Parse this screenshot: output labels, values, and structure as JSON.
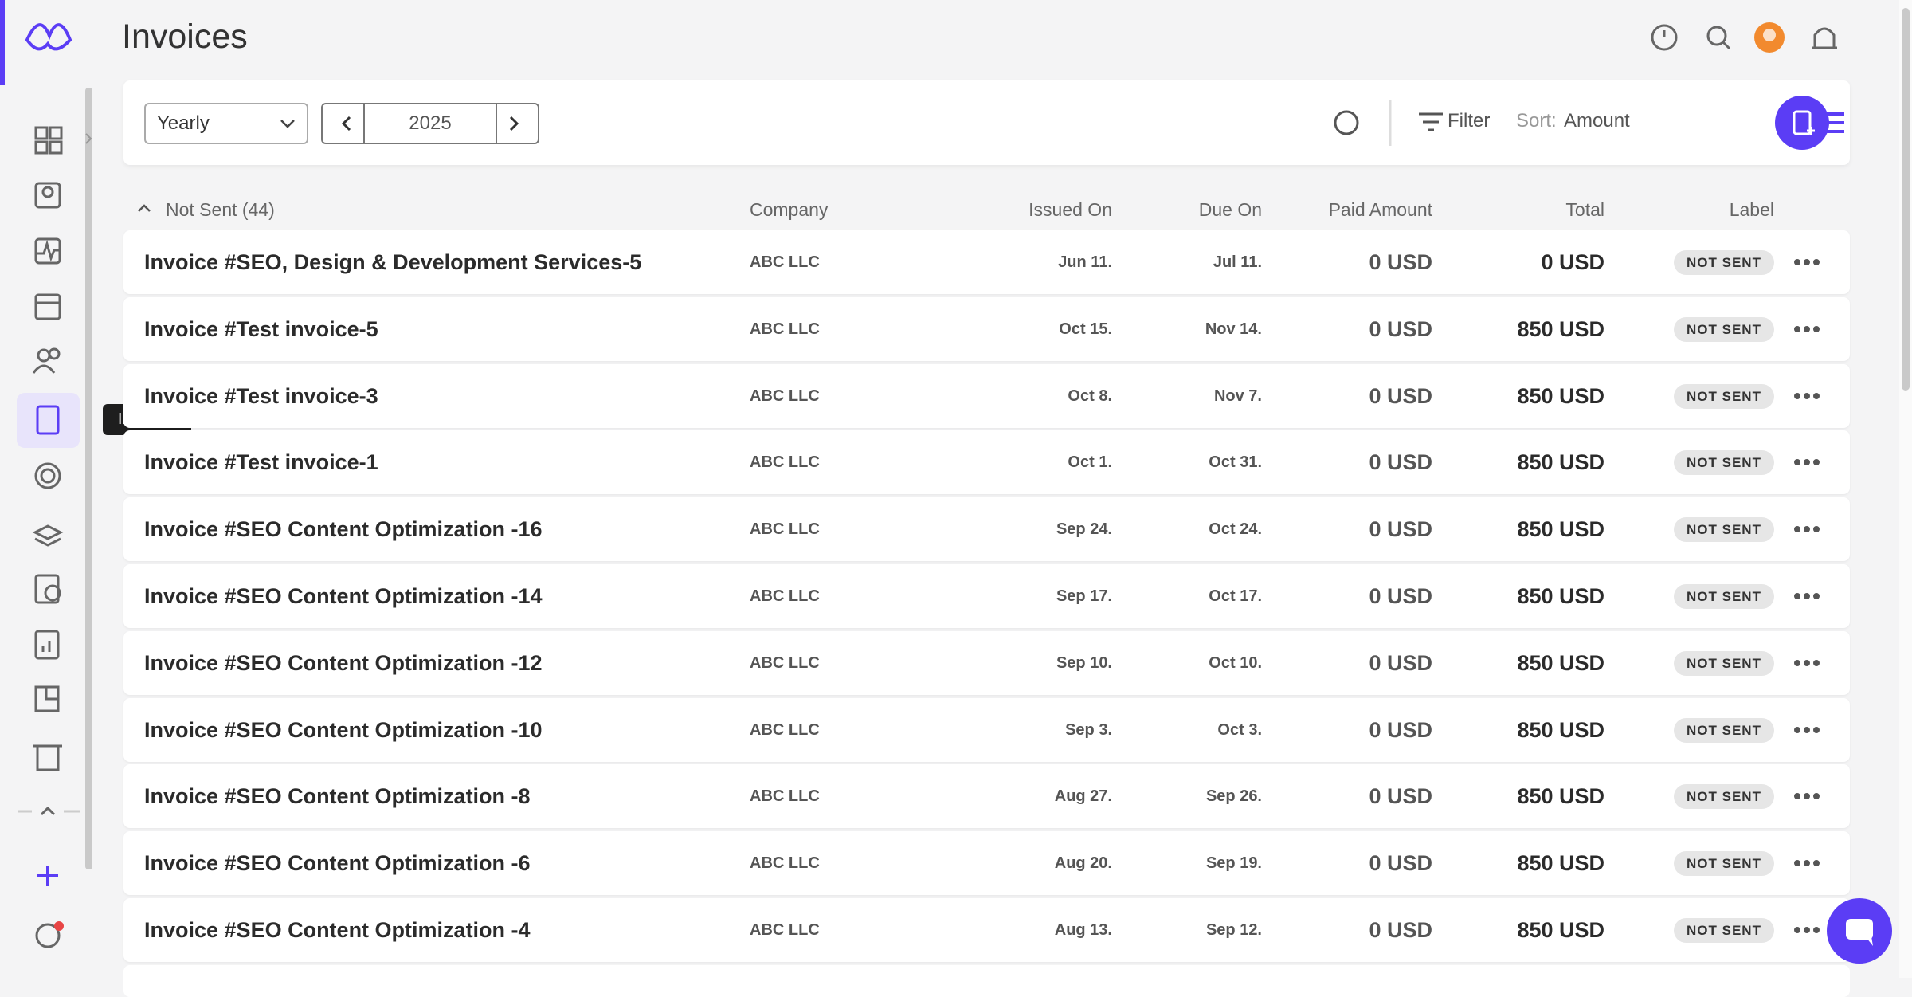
{
  "header": {
    "title": "Invoices"
  },
  "sidebar": {
    "tooltip": "Invoices"
  },
  "toolbar": {
    "period": "Yearly",
    "year": "2025",
    "filter": "Filter",
    "sort_label": "Sort:",
    "sort_value": "Amount"
  },
  "table": {
    "group": "Not Sent (44)",
    "columns": [
      "Company",
      "Issued On",
      "Due On",
      "Paid Amount",
      "Total",
      "Label"
    ],
    "rows": [
      [
        "Invoice #SEO, Design & Development Services-5",
        "ABC LLC",
        "Jun 11.",
        "Jul 11.",
        "0 USD",
        "0 USD",
        "NOT SENT"
      ],
      [
        "Invoice #Test invoice-5",
        "ABC LLC",
        "Oct 15.",
        "Nov 14.",
        "0 USD",
        "850 USD",
        "NOT SENT"
      ],
      [
        "Invoice #Test invoice-3",
        "ABC LLC",
        "Oct 8.",
        "Nov 7.",
        "0 USD",
        "850 USD",
        "NOT SENT"
      ],
      [
        "Invoice #Test invoice-1",
        "ABC LLC",
        "Oct 1.",
        "Oct 31.",
        "0 USD",
        "850 USD",
        "NOT SENT"
      ],
      [
        "Invoice #SEO Content Optimization -16",
        "ABC LLC",
        "Sep 24.",
        "Oct 24.",
        "0 USD",
        "850 USD",
        "NOT SENT"
      ],
      [
        "Invoice #SEO Content Optimization -14",
        "ABC LLC",
        "Sep 17.",
        "Oct 17.",
        "0 USD",
        "850 USD",
        "NOT SENT"
      ],
      [
        "Invoice #SEO Content Optimization -12",
        "ABC LLC",
        "Sep 10.",
        "Oct 10.",
        "0 USD",
        "850 USD",
        "NOT SENT"
      ],
      [
        "Invoice #SEO Content Optimization -10",
        "ABC LLC",
        "Sep 3.",
        "Oct 3.",
        "0 USD",
        "850 USD",
        "NOT SENT"
      ],
      [
        "Invoice #SEO Content Optimization -8",
        "ABC LLC",
        "Aug 27.",
        "Sep 26.",
        "0 USD",
        "850 USD",
        "NOT SENT"
      ],
      [
        "Invoice #SEO Content Optimization -6",
        "ABC LLC",
        "Aug 20.",
        "Sep 19.",
        "0 USD",
        "850 USD",
        "NOT SENT"
      ],
      [
        "Invoice #SEO Content Optimization -4",
        "ABC LLC",
        "Aug 13.",
        "Sep 12.",
        "0 USD",
        "850 USD",
        "NOT SENT"
      ]
    ]
  }
}
